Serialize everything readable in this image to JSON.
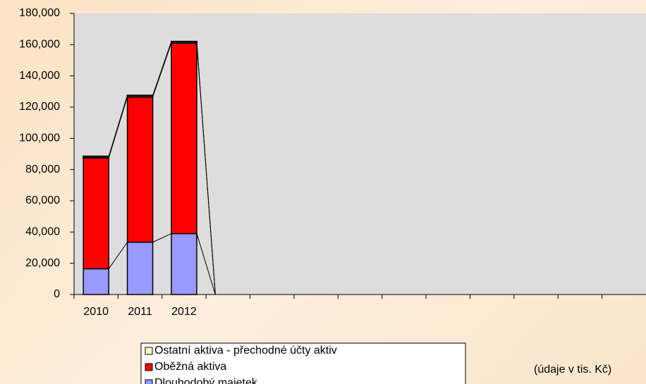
{
  "chart_data": {
    "type": "stacked-bar",
    "note": "(údaje v tis. Kč)",
    "categories": [
      "2010",
      "2011",
      "2012",
      null,
      null,
      null,
      null,
      null,
      null,
      null,
      null,
      null,
      null
    ],
    "series": [
      {
        "name": "Dlouhodobý majetek",
        "color": "#9999ff",
        "values": [
          16500,
          33500,
          39000,
          0,
          0,
          0,
          0,
          0,
          0,
          0,
          0,
          0,
          0
        ]
      },
      {
        "name": "Oběžná aktiva",
        "color": "#ff0000",
        "values": [
          71000,
          93000,
          122000,
          0,
          0,
          0,
          0,
          0,
          0,
          0,
          0,
          0,
          0
        ]
      },
      {
        "name": "Ostatní aktiva - přechodné účty aktiv",
        "color": "#ffffcc",
        "values": [
          1000,
          1000,
          1000,
          0,
          0,
          0,
          0,
          0,
          0,
          0,
          0,
          0,
          0
        ]
      }
    ],
    "ylim": [
      0,
      180000
    ],
    "yticks": [
      0,
      {
        "value": 20000,
        "label": "20,000"
      },
      {
        "value": 40000,
        "label": "40,000"
      },
      {
        "value": 60000,
        "label": "60,000"
      },
      {
        "value": 80000,
        "label": "80,000"
      },
      {
        "value": 100000,
        "label": "100,000"
      },
      {
        "value": 120000,
        "label": "120,000"
      },
      {
        "value": 140000,
        "label": "140,000"
      },
      {
        "value": 160000,
        "label": "160,000"
      },
      {
        "value": 180000,
        "label": "180,000"
      }
    ],
    "plot_background": "#dddddd",
    "series_lines": true
  }
}
